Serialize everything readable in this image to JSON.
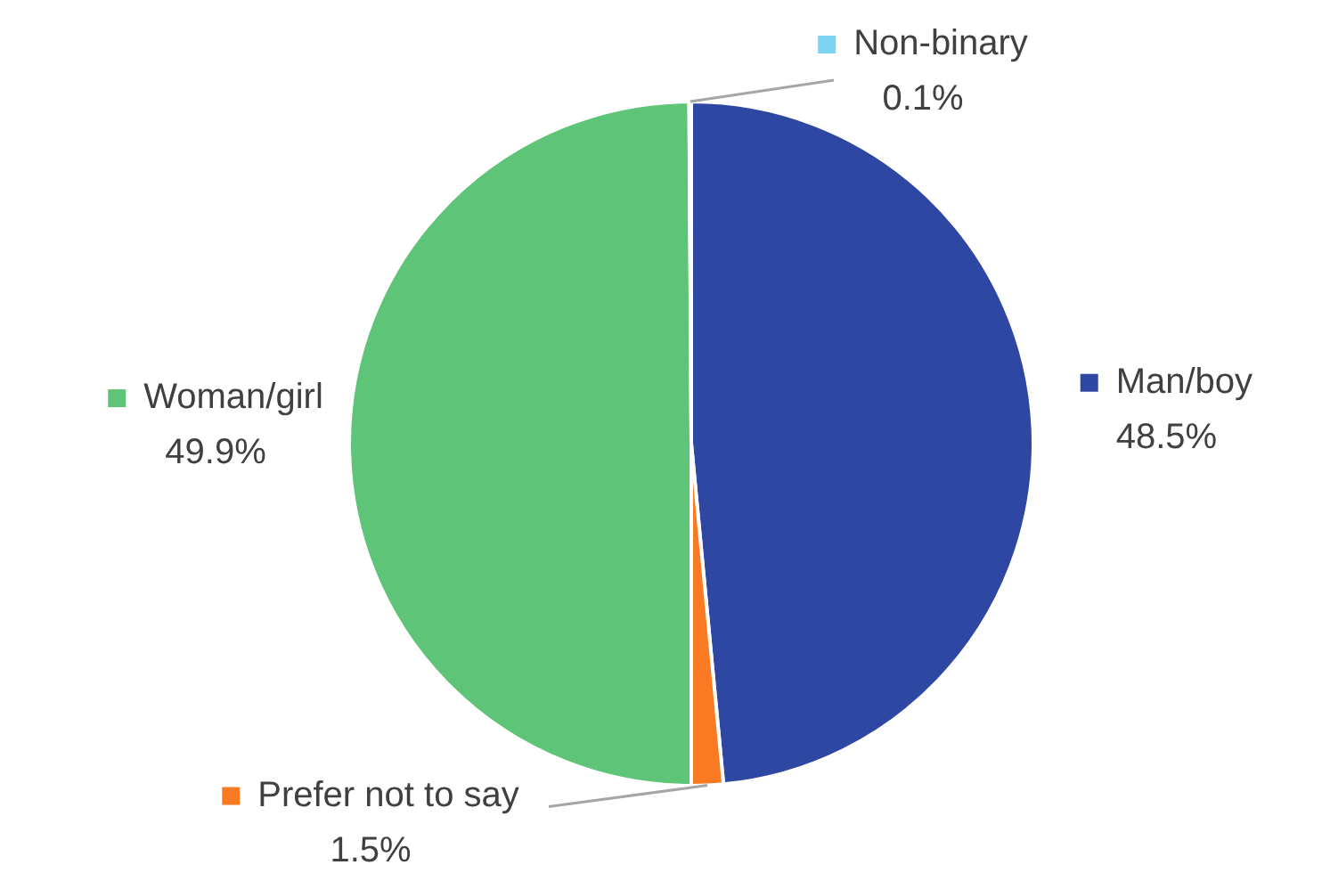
{
  "chart_data": {
    "type": "pie",
    "categories": [
      "Man/boy",
      "Prefer not to say",
      "Woman/girl",
      "Non-binary"
    ],
    "values": [
      48.5,
      1.5,
      49.9,
      0.1
    ],
    "value_labels": [
      "48.5%",
      "1.5%",
      "49.9%",
      "0.1%"
    ],
    "colors": [
      "#2e47a3",
      "#f97a22",
      "#5ec477",
      "#7fd3f2"
    ],
    "legend": "right"
  }
}
